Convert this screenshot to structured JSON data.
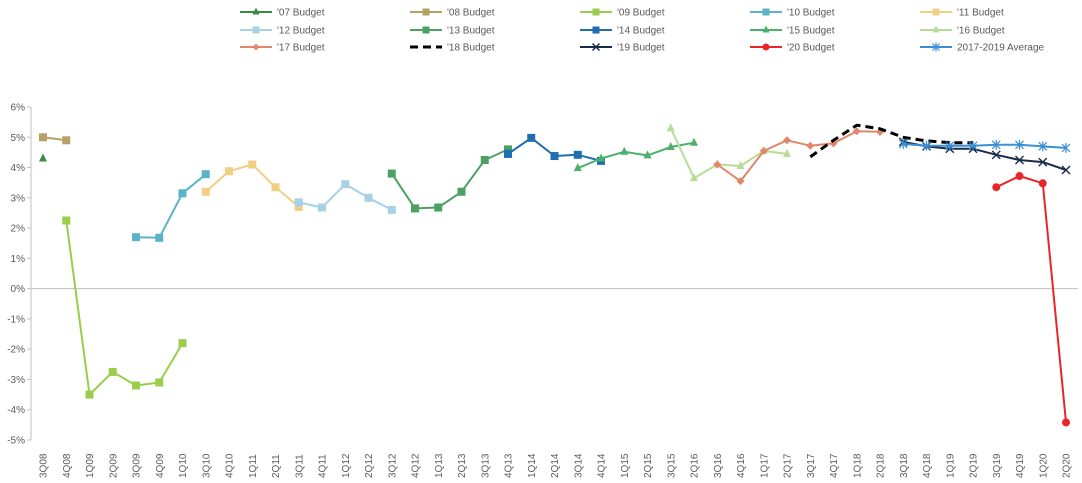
{
  "chart_data": {
    "type": "line",
    "categories": [
      "3Q08",
      "4Q08",
      "1Q09",
      "2Q09",
      "3Q09",
      "4Q09",
      "1Q10",
      "3Q10",
      "4Q10",
      "1Q11",
      "2Q11",
      "3Q11",
      "4Q11",
      "1Q12",
      "2Q12",
      "3Q12",
      "4Q12",
      "1Q13",
      "2Q13",
      "3Q13",
      "4Q13",
      "1Q14",
      "2Q14",
      "3Q14",
      "4Q14",
      "1Q15",
      "2Q15",
      "3Q15",
      "2Q16",
      "3Q16",
      "4Q16",
      "1Q17",
      "2Q17",
      "3Q17",
      "4Q17",
      "1Q18",
      "2Q18",
      "3Q18",
      "4Q18",
      "1Q19",
      "2Q19",
      "3Q19",
      "4Q19",
      "1Q20",
      "2Q20"
    ],
    "ylim": [
      -5,
      6
    ],
    "ytick_labels": [
      "-5%",
      "-4%",
      "-3%",
      "-2%",
      "-1%",
      "0%",
      "1%",
      "2%",
      "3%",
      "4%",
      "5%",
      "6%"
    ],
    "grid": false,
    "legend_position": "top",
    "series": [
      {
        "name": "'07 Budget",
        "color": "#3a8a4a",
        "marker": "triangle",
        "dashed": false,
        "points": [
          [
            0,
            4.3
          ]
        ]
      },
      {
        "name": "'08 Budget",
        "color": "#b5a165",
        "marker": "square",
        "dashed": false,
        "points": [
          [
            0,
            5.0
          ],
          [
            1,
            4.9
          ]
        ]
      },
      {
        "name": "'09 Budget",
        "color": "#9acd4a",
        "marker": "square",
        "dashed": false,
        "points": [
          [
            1,
            2.25
          ],
          [
            2,
            -3.5
          ],
          [
            3,
            -2.75
          ],
          [
            4,
            -3.2
          ],
          [
            5,
            -3.1
          ],
          [
            6,
            -1.8
          ]
        ]
      },
      {
        "name": "'10 Budget",
        "color": "#5bb3c7",
        "marker": "square",
        "dashed": false,
        "points": [
          [
            4,
            1.7
          ],
          [
            5,
            1.68
          ],
          [
            6,
            3.15
          ],
          [
            7,
            3.78
          ]
        ]
      },
      {
        "name": "'11 Budget",
        "color": "#f1cf82",
        "marker": "square",
        "dashed": false,
        "points": [
          [
            7,
            3.2
          ],
          [
            8,
            3.88
          ],
          [
            9,
            4.1
          ],
          [
            10,
            3.35
          ],
          [
            11,
            2.7
          ]
        ]
      },
      {
        "name": "'12 Budget",
        "color": "#a6d1e6",
        "marker": "square",
        "dashed": false,
        "points": [
          [
            11,
            2.85
          ],
          [
            12,
            2.68
          ],
          [
            13,
            3.45
          ],
          [
            14,
            3.0
          ],
          [
            15,
            2.6
          ]
        ]
      },
      {
        "name": "'13 Budget",
        "color": "#4ca064",
        "marker": "square",
        "dashed": false,
        "points": [
          [
            15,
            3.8
          ],
          [
            16,
            2.65
          ],
          [
            17,
            2.68
          ],
          [
            18,
            3.2
          ],
          [
            19,
            4.25
          ],
          [
            20,
            4.6
          ]
        ]
      },
      {
        "name": "'14 Budget",
        "color": "#1f6eb0",
        "marker": "square",
        "dashed": false,
        "points": [
          [
            20,
            4.45
          ],
          [
            21,
            4.98
          ],
          [
            22,
            4.38
          ],
          [
            23,
            4.42
          ],
          [
            24,
            4.22
          ]
        ]
      },
      {
        "name": "'15 Budget",
        "color": "#4caf6a",
        "marker": "triangle",
        "dashed": false,
        "points": [
          [
            23,
            3.98
          ],
          [
            24,
            4.3
          ],
          [
            25,
            4.52
          ],
          [
            26,
            4.4
          ],
          [
            27,
            4.68
          ],
          [
            28,
            4.82
          ]
        ]
      },
      {
        "name": "'16 Budget",
        "color": "#b8dc98",
        "marker": "triangle",
        "dashed": false,
        "points": [
          [
            27,
            5.3
          ],
          [
            28,
            3.65
          ],
          [
            29,
            4.1
          ],
          [
            30,
            4.05
          ],
          [
            31,
            4.55
          ],
          [
            32,
            4.45
          ]
        ]
      },
      {
        "name": "'17 Budget",
        "color": "#e0866a",
        "marker": "diamond",
        "dashed": false,
        "points": [
          [
            29,
            4.1
          ],
          [
            30,
            3.55
          ],
          [
            31,
            4.55
          ],
          [
            32,
            4.9
          ],
          [
            33,
            4.72
          ],
          [
            34,
            4.8
          ],
          [
            35,
            5.2
          ],
          [
            36,
            5.18
          ]
        ]
      },
      {
        "name": "'18 Budget",
        "color": "#000000",
        "marker": "none",
        "dashed": true,
        "points": [
          [
            33,
            4.35
          ],
          [
            34,
            4.9
          ],
          [
            35,
            5.4
          ],
          [
            36,
            5.28
          ],
          [
            37,
            5.0
          ],
          [
            38,
            4.88
          ],
          [
            39,
            4.82
          ],
          [
            40,
            4.82
          ]
        ]
      },
      {
        "name": "'19 Budget",
        "color": "#1a2c4a",
        "marker": "x",
        "dashed": false,
        "points": [
          [
            37,
            4.85
          ],
          [
            38,
            4.7
          ],
          [
            39,
            4.62
          ],
          [
            40,
            4.62
          ],
          [
            41,
            4.42
          ],
          [
            42,
            4.25
          ],
          [
            43,
            4.18
          ],
          [
            44,
            3.92
          ]
        ]
      },
      {
        "name": "'20 Budget",
        "color": "#e8262a",
        "marker": "circle",
        "dashed": false,
        "points": [
          [
            41,
            3.35
          ],
          [
            42,
            3.72
          ],
          [
            43,
            3.48
          ],
          [
            44,
            -4.42
          ]
        ]
      },
      {
        "name": "2017-2019 Average",
        "color": "#3a8fd8",
        "marker": "star",
        "dashed": false,
        "points": [
          [
            37,
            4.78
          ],
          [
            38,
            4.72
          ],
          [
            39,
            4.72
          ],
          [
            40,
            4.72
          ],
          [
            41,
            4.75
          ],
          [
            42,
            4.75
          ],
          [
            43,
            4.7
          ],
          [
            44,
            4.65
          ]
        ]
      }
    ]
  }
}
